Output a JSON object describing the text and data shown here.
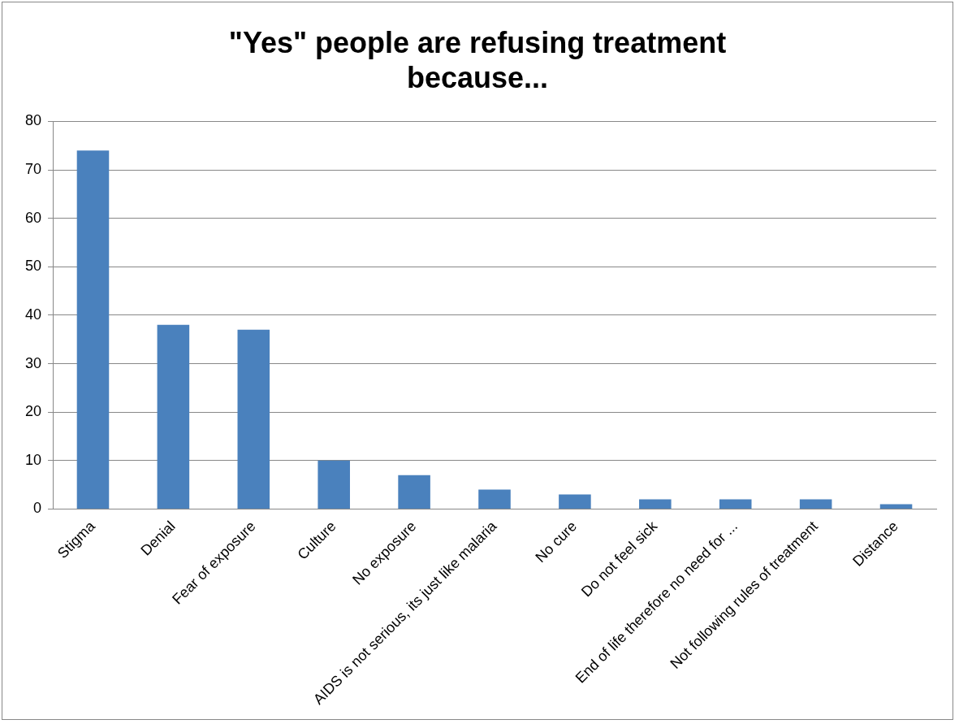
{
  "chart_data": {
    "type": "bar",
    "title": "\"Yes\" people are refusing treatment because...",
    "categories": [
      "Stigma",
      "Denial",
      "Fear of exposure",
      "Culture",
      "No exposure",
      "AIDS is not serious, its just like malaria",
      "No cure",
      "Do not feel sick",
      "End of life therefore no need for ...",
      "Not following rules of treatment",
      "Distance"
    ],
    "values": [
      74,
      38,
      37,
      10,
      7,
      4,
      3,
      2,
      2,
      2,
      1
    ],
    "color": "#4a81bd",
    "ylim": [
      0,
      80
    ],
    "yticks": [
      0,
      10,
      20,
      30,
      40,
      50,
      60,
      70,
      80
    ],
    "grid": "y",
    "legend": false
  }
}
